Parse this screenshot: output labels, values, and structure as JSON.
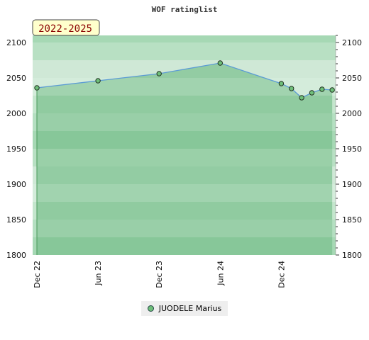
{
  "chart_data": {
    "type": "line",
    "title": "WOF ratinglist",
    "period_label": "2022-2025",
    "xlabel": "",
    "ylabel": "",
    "x_tick_labels": [
      "Dec 22",
      "Jun 23",
      "Dec 23",
      "Jun 24",
      "Dec 24"
    ],
    "y_tick_labels": [
      "1800",
      "1850",
      "1900",
      "1950",
      "2000",
      "2050",
      "2100"
    ],
    "ylim": [
      1800,
      2110
    ],
    "grid": true,
    "legend_position": "bottom",
    "series": [
      {
        "name": "JUODELE Marius",
        "color": "#5b9bd5",
        "fill_color": "#7cc08f",
        "marker_color": "#6fbf7a",
        "points": [
          {
            "x": "2022-12",
            "y": 2036
          },
          {
            "x": "2023-06",
            "y": 2046
          },
          {
            "x": "2023-12",
            "y": 2056
          },
          {
            "x": "2024-06",
            "y": 2071
          },
          {
            "x": "2024-12",
            "y": 2042
          },
          {
            "x": "2025-01",
            "y": 2035
          },
          {
            "x": "2025-02",
            "y": 2022
          },
          {
            "x": "2025-03",
            "y": 2029
          },
          {
            "x": "2025-04",
            "y": 2034
          },
          {
            "x": "2025-05",
            "y": 2033
          }
        ]
      }
    ]
  }
}
